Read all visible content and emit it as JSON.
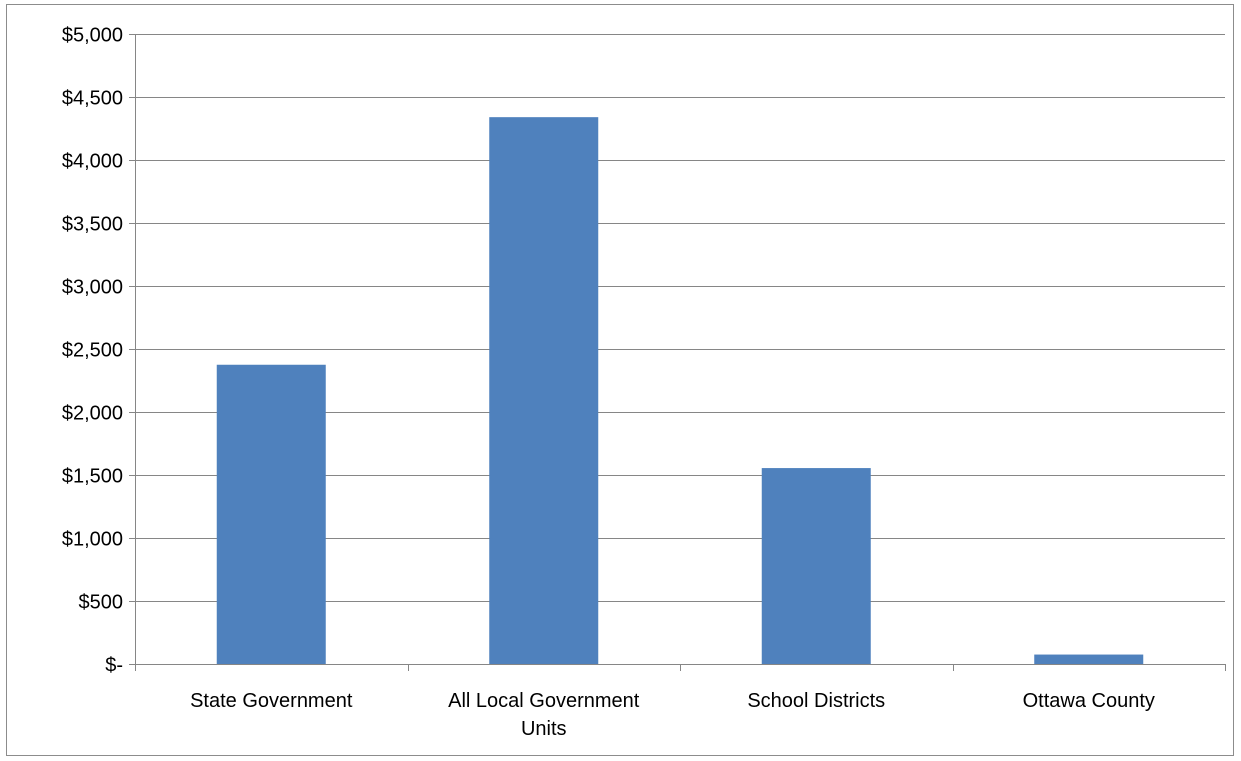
{
  "chart_data": {
    "type": "bar",
    "title": "",
    "xlabel": "",
    "ylabel": "",
    "categories": [
      [
        "State Government"
      ],
      [
        "All Local Government",
        "Units"
      ],
      [
        "School Districts"
      ],
      [
        "Ottawa County"
      ]
    ],
    "values": [
      2375,
      4340,
      1555,
      75
    ],
    "ylim": [
      0,
      5000
    ],
    "ytick_values": [
      0,
      500,
      1000,
      1500,
      2000,
      2500,
      3000,
      3500,
      4000,
      4500,
      5000
    ],
    "ytick_labels": [
      "$-",
      "$500",
      "$1,000",
      "$1,500",
      "$2,000",
      "$2,500",
      "$3,000",
      "$3,500",
      "$4,000",
      "$4,500",
      "$5,000"
    ],
    "grid": true,
    "legend": "none",
    "bar_color": "#4f81bd",
    "grid_color": "#868686"
  }
}
